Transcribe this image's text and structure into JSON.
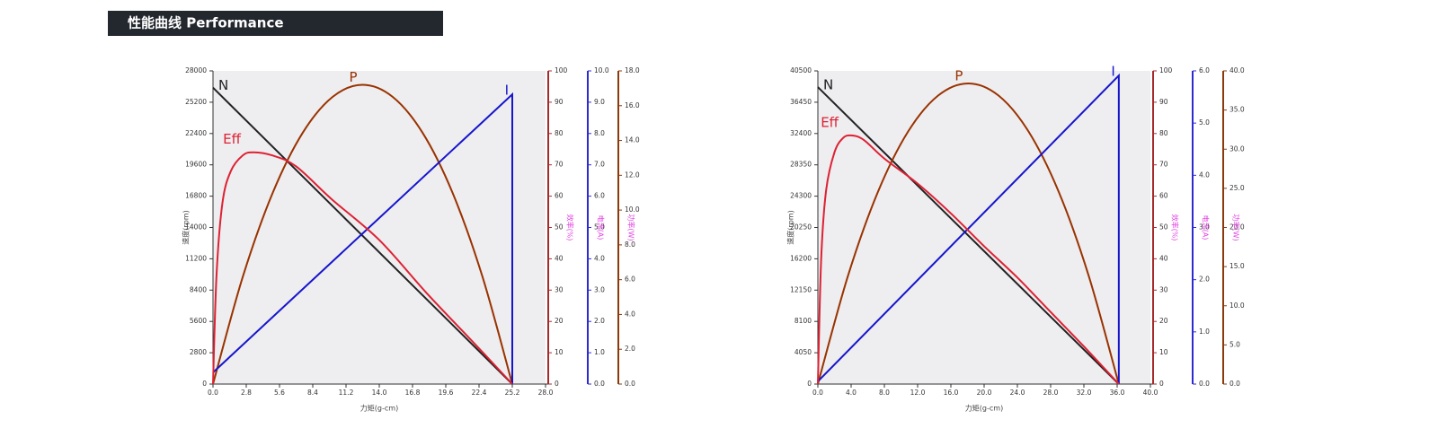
{
  "header": {
    "title": "性能曲线 Performance"
  },
  "chart_data": [
    {
      "type": "line",
      "xlabel": "力矩(g-cm)",
      "ylabel": "速度(rpm)",
      "y2label": "效率(%)",
      "y3label": "电流(A)",
      "y4label": "功率(W)",
      "xlim": [
        0,
        28
      ],
      "xticks": [
        {
          "value": 0,
          "label": "0.0"
        },
        2.8,
        5.6,
        8.4,
        11.2,
        {
          "value": 14,
          "label": "14.0"
        },
        16.8,
        19.6,
        22.4,
        25.2,
        {
          "value": 28,
          "label": "28.0"
        }
      ],
      "ylim": [
        0,
        28000
      ],
      "yticks": [
        0,
        2800,
        5600,
        8400,
        11200,
        14000,
        16800,
        19600,
        22400,
        25200,
        28000
      ],
      "y2lim": [
        0,
        100
      ],
      "y2ticks": [
        0,
        10,
        20,
        30,
        40,
        50,
        60,
        70,
        80,
        90,
        100
      ],
      "y3lim": [
        0,
        10
      ],
      "y3ticks": [
        {
          "value": 0,
          "label": "0.0"
        },
        {
          "value": 1,
          "label": "1.0"
        },
        {
          "value": 2,
          "label": "2.0"
        },
        {
          "value": 3,
          "label": "3.0"
        },
        {
          "value": 4,
          "label": "4.0"
        },
        {
          "value": 5,
          "label": "5.0"
        },
        {
          "value": 6,
          "label": "6.0"
        },
        {
          "value": 7,
          "label": "7.0"
        },
        {
          "value": 8,
          "label": "8.0"
        },
        {
          "value": 9,
          "label": "9.0"
        },
        {
          "value": 10,
          "label": "10.0"
        }
      ],
      "y4lim": [
        0,
        18
      ],
      "y4ticks": [
        {
          "value": 0,
          "label": "0.0"
        },
        {
          "value": 2,
          "label": "2.0"
        },
        {
          "value": 4,
          "label": "4.0"
        },
        {
          "value": 6,
          "label": "6.0"
        },
        {
          "value": 8,
          "label": "8.0"
        },
        {
          "value": 10,
          "label": "10.0"
        },
        {
          "value": 12,
          "label": "12.0"
        },
        {
          "value": 14,
          "label": "14.0"
        },
        {
          "value": 16,
          "label": "16.0"
        },
        {
          "value": 18,
          "label": "18.0"
        }
      ],
      "series": [
        {
          "name": "N",
          "color": "#222222",
          "axis": "y",
          "x": [
            0,
            25.2
          ],
          "values": [
            26500,
            0
          ]
        },
        {
          "name": "P",
          "color": "#993300",
          "axis": "y4",
          "smooth": true,
          "x": [
            0,
            2.52,
            5.04,
            7.56,
            10.08,
            12.6,
            15.12,
            17.64,
            20.16,
            22.68,
            25.2
          ],
          "values": [
            0,
            6.19,
            11.01,
            14.45,
            16.51,
            17.2,
            16.51,
            14.45,
            11.01,
            6.19,
            0
          ]
        },
        {
          "name": "I",
          "color": "#1515cc",
          "axis": "y3",
          "x": [
            0,
            25.2,
            25.2
          ],
          "values": [
            0.37,
            9.25,
            0
          ]
        },
        {
          "name": "Eff",
          "color": "#dd2233",
          "axis": "y2",
          "smooth": true,
          "x": [
            0,
            0.3,
            0.8,
            1.5,
            2.5,
            3.4,
            5,
            7,
            10,
            14,
            18,
            22,
            25.2
          ],
          "values": [
            0,
            35,
            58,
            68,
            73,
            74,
            73,
            69.5,
            59,
            46,
            29,
            13,
            0
          ]
        }
      ]
    },
    {
      "type": "line",
      "xlabel": "力矩(g-cm)",
      "ylabel": "速度(rpm)",
      "y2label": "效率(%)",
      "y3label": "电流(A)",
      "y4label": "功率(W)",
      "xlim": [
        0,
        40
      ],
      "xticks": [
        {
          "value": 0,
          "label": "0.0"
        },
        {
          "value": 4,
          "label": "4.0"
        },
        {
          "value": 8,
          "label": "8.0"
        },
        {
          "value": 12,
          "label": "12.0"
        },
        {
          "value": 16,
          "label": "16.0"
        },
        {
          "value": 20,
          "label": "20.0"
        },
        {
          "value": 24,
          "label": "24.0"
        },
        {
          "value": 28,
          "label": "28.0"
        },
        {
          "value": 32,
          "label": "32.0"
        },
        {
          "value": 36,
          "label": "36.0"
        },
        {
          "value": 40,
          "label": "40.0"
        }
      ],
      "ylim": [
        0,
        40500
      ],
      "yticks": [
        0,
        4050,
        8100,
        12150,
        16200,
        20250,
        24300,
        28350,
        32400,
        36450,
        40500
      ],
      "y2lim": [
        0,
        100
      ],
      "y2ticks": [
        0,
        10,
        20,
        30,
        40,
        50,
        60,
        70,
        80,
        90,
        100
      ],
      "y3lim": [
        0,
        6
      ],
      "y3ticks": [
        {
          "value": 0,
          "label": "0.0"
        },
        {
          "value": 1,
          "label": "1.0"
        },
        {
          "value": 2,
          "label": "2.0"
        },
        {
          "value": 3,
          "label": "3.0"
        },
        {
          "value": 4,
          "label": "4.0"
        },
        {
          "value": 5,
          "label": "5.0"
        },
        {
          "value": 6,
          "label": "6.0"
        }
      ],
      "y4lim": [
        0,
        40
      ],
      "y4ticks": [
        {
          "value": 0,
          "label": "0.0"
        },
        {
          "value": 5,
          "label": "5.0"
        },
        {
          "value": 10,
          "label": "10.0"
        },
        {
          "value": 15,
          "label": "15.0"
        },
        {
          "value": 20,
          "label": "20.0"
        },
        {
          "value": 25,
          "label": "25.0"
        },
        {
          "value": 30,
          "label": "30.0"
        },
        {
          "value": 35,
          "label": "35.0"
        },
        {
          "value": 40,
          "label": "40.0"
        }
      ],
      "series": [
        {
          "name": "N",
          "color": "#222222",
          "axis": "y",
          "x": [
            0,
            36.2
          ],
          "values": [
            38400,
            0
          ]
        },
        {
          "name": "P",
          "color": "#993300",
          "axis": "y4",
          "smooth": true,
          "x": [
            0,
            3.62,
            7.24,
            10.86,
            14.48,
            18.1,
            21.72,
            25.34,
            28.96,
            32.58,
            36.2
          ],
          "values": [
            0,
            13.82,
            24.58,
            32.26,
            36.86,
            38.4,
            36.86,
            32.26,
            24.58,
            13.82,
            0
          ]
        },
        {
          "name": "I",
          "color": "#1515cc",
          "axis": "y3",
          "x": [
            0,
            36.2,
            36.2
          ],
          "values": [
            0.05,
            5.91,
            0
          ]
        },
        {
          "name": "Eff",
          "color": "#dd2233",
          "axis": "y2",
          "smooth": true,
          "x": [
            0,
            0.4,
            1,
            2,
            3,
            4,
            5.5,
            8,
            12,
            16,
            20,
            24,
            28,
            32,
            36.2
          ],
          "values": [
            0,
            40,
            62,
            74,
            78.5,
            79.4,
            78,
            72,
            64,
            54.5,
            44,
            34,
            23,
            12,
            0
          ]
        }
      ]
    }
  ]
}
